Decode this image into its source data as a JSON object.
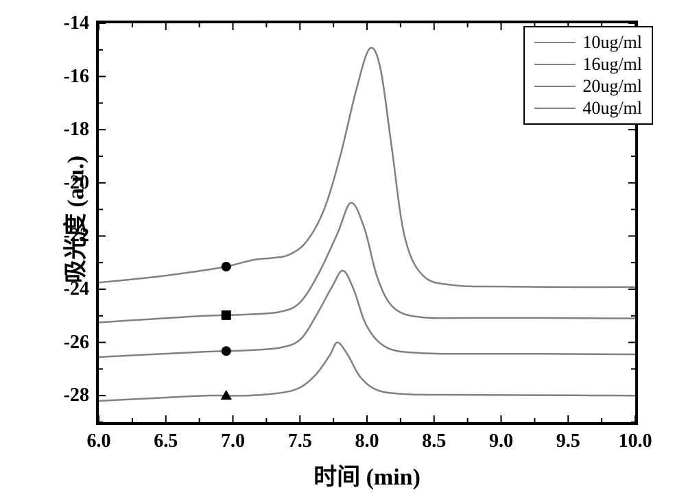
{
  "chart": {
    "type": "line-overlay",
    "background_color": "#ffffff",
    "line_color": "#808080",
    "line_width": 2.5,
    "axis_line_width": 4,
    "xlim": [
      6.0,
      10.0
    ],
    "ylim": [
      -29,
      -14
    ],
    "xtick_step": 0.5,
    "ytick_step": 2,
    "xticks": [
      "6.0",
      "6.5",
      "7.0",
      "7.5",
      "8.0",
      "8.5",
      "9.0",
      "9.5",
      "10.0"
    ],
    "yticks": [
      "-14",
      "-16",
      "-18",
      "-20",
      "-22",
      "-24",
      "-26",
      "-28"
    ],
    "xlabel_main": "时间",
    "xlabel_units": " (min)",
    "ylabel_main": "吸光度",
    "ylabel_units": " (a.u.)",
    "axis_font_size": 34,
    "tick_font_size": 28,
    "tick_len_major": 10,
    "tick_len_minor": 6,
    "marker_x": 6.95,
    "marker_size": 14,
    "marker_color": "#000000",
    "series": [
      {
        "name": "10ug/ml",
        "label": "10ug/ml",
        "marker": "triangle",
        "points": [
          [
            6.0,
            -28.2
          ],
          [
            6.4,
            -28.1
          ],
          [
            6.8,
            -28.0
          ],
          [
            7.1,
            -28.0
          ],
          [
            7.35,
            -27.9
          ],
          [
            7.5,
            -27.7
          ],
          [
            7.62,
            -27.2
          ],
          [
            7.72,
            -26.5
          ],
          [
            7.78,
            -26.0
          ],
          [
            7.86,
            -26.5
          ],
          [
            7.95,
            -27.3
          ],
          [
            8.08,
            -27.8
          ],
          [
            8.3,
            -27.95
          ],
          [
            8.6,
            -27.97
          ],
          [
            9.0,
            -27.98
          ],
          [
            9.5,
            -27.99
          ],
          [
            10.0,
            -28.0
          ]
        ]
      },
      {
        "name": "16ug/ml",
        "label": "16ug/ml",
        "marker": "circle",
        "points": [
          [
            6.0,
            -26.55
          ],
          [
            6.4,
            -26.45
          ],
          [
            6.8,
            -26.35
          ],
          [
            7.1,
            -26.3
          ],
          [
            7.35,
            -26.2
          ],
          [
            7.5,
            -25.9
          ],
          [
            7.62,
            -25.0
          ],
          [
            7.74,
            -23.9
          ],
          [
            7.82,
            -23.3
          ],
          [
            7.9,
            -24.0
          ],
          [
            8.0,
            -25.4
          ],
          [
            8.15,
            -26.2
          ],
          [
            8.4,
            -26.4
          ],
          [
            8.8,
            -26.43
          ],
          [
            9.3,
            -26.43
          ],
          [
            10.0,
            -26.45
          ]
        ]
      },
      {
        "name": "20ug/ml",
        "label": "20ug/ml",
        "marker": "square",
        "points": [
          [
            6.0,
            -25.25
          ],
          [
            6.4,
            -25.12
          ],
          [
            6.8,
            -25.0
          ],
          [
            7.1,
            -24.95
          ],
          [
            7.35,
            -24.85
          ],
          [
            7.5,
            -24.5
          ],
          [
            7.64,
            -23.4
          ],
          [
            7.78,
            -21.9
          ],
          [
            7.88,
            -20.75
          ],
          [
            7.98,
            -21.7
          ],
          [
            8.08,
            -23.6
          ],
          [
            8.2,
            -24.7
          ],
          [
            8.4,
            -25.05
          ],
          [
            8.8,
            -25.08
          ],
          [
            9.3,
            -25.08
          ],
          [
            10.0,
            -25.1
          ]
        ]
      },
      {
        "name": "40ug/ml",
        "label": "40ug/ml",
        "marker": "circle",
        "points": [
          [
            6.0,
            -23.75
          ],
          [
            6.4,
            -23.55
          ],
          [
            6.7,
            -23.35
          ],
          [
            6.95,
            -23.15
          ],
          [
            7.15,
            -22.9
          ],
          [
            7.3,
            -22.82
          ],
          [
            7.42,
            -22.7
          ],
          [
            7.55,
            -22.2
          ],
          [
            7.68,
            -21.0
          ],
          [
            7.8,
            -19.0
          ],
          [
            7.92,
            -16.5
          ],
          [
            8.02,
            -14.95
          ],
          [
            8.1,
            -15.7
          ],
          [
            8.18,
            -18.5
          ],
          [
            8.28,
            -22.0
          ],
          [
            8.42,
            -23.5
          ],
          [
            8.65,
            -23.85
          ],
          [
            9.0,
            -23.9
          ],
          [
            9.5,
            -23.92
          ],
          [
            10.0,
            -23.92
          ]
        ]
      }
    ],
    "legend": {
      "border_color": "#000000",
      "border_width": 2,
      "font_size": 26,
      "font_family": "Times New Roman"
    }
  }
}
